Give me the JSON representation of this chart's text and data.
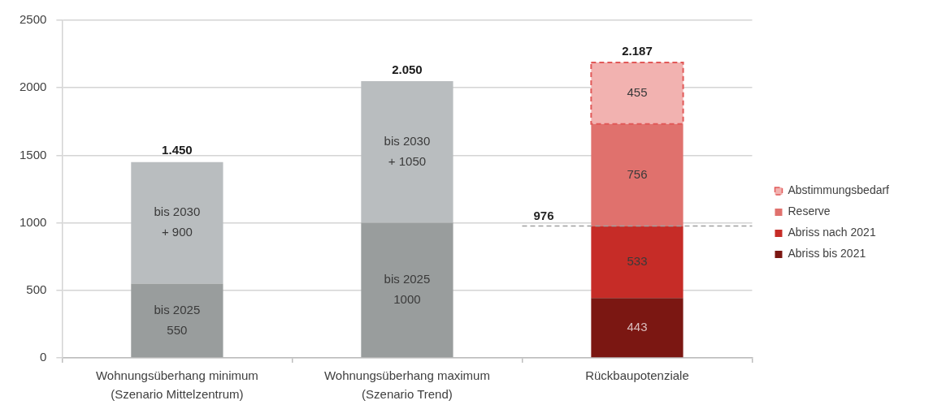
{
  "chart_data": {
    "type": "bar",
    "stacked": true,
    "categories": [
      "Wohnungsüberhang minimum\n(Szenario Mittelzentrum)",
      "Wohnungsüberhang maximum\n(Szenario Trend)",
      "Rückbaupotenziale"
    ],
    "series": [
      {
        "color": "#999d9d",
        "values": [
          550,
          1000,
          null
        ],
        "value_labels": [
          "bis 2025\n550",
          "bis 2025\n1000",
          null
        ]
      },
      {
        "color": "#b9bdbf",
        "values": [
          900,
          1050,
          null
        ],
        "value_labels": [
          "bis 2030\n+ 900",
          "bis 2030\n+ 1050",
          null
        ]
      },
      {
        "name": "Abriss bis 2021",
        "color": "#7b1712",
        "values": [
          null,
          null,
          443
        ],
        "value_labels": [
          null,
          null,
          "443"
        ]
      },
      {
        "name": "Abriss nach 2021",
        "color": "#c62c27",
        "values": [
          null,
          null,
          533
        ],
        "value_labels": [
          null,
          null,
          "533"
        ]
      },
      {
        "name": "Reserve",
        "color": "#e0716d",
        "values": [
          null,
          null,
          756
        ],
        "value_labels": [
          null,
          null,
          "756"
        ]
      },
      {
        "name": "Abstimmungsbedarf",
        "color": "#f2b2b0",
        "line_style": "dashed",
        "values": [
          null,
          null,
          455
        ],
        "value_labels": [
          null,
          null,
          "455"
        ]
      }
    ],
    "totals": [
      "1.450",
      "2.050",
      "2.187"
    ],
    "ylim": [
      0,
      2500
    ],
    "yticks": [
      0,
      500,
      1000,
      1500,
      2000,
      2500
    ],
    "grid": "y",
    "ref_lines": [
      {
        "axis": "y",
        "value": 976,
        "label": "976",
        "color": "#a0a0a0",
        "line_style": "dashed"
      }
    ],
    "legend": "right"
  }
}
